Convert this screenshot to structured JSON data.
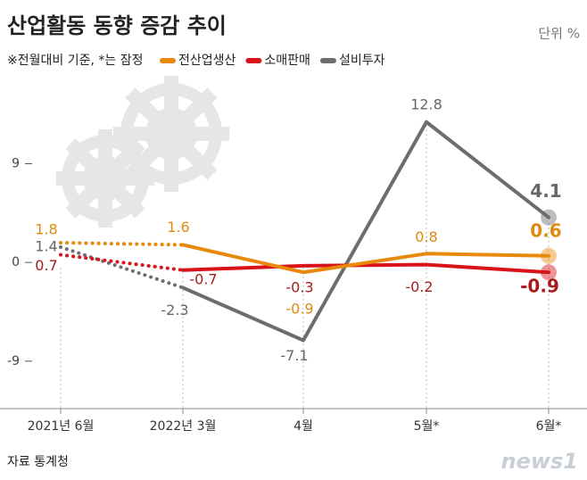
{
  "chart_data": {
    "type": "line",
    "title": "산업활동 동향 증감 추이",
    "unit": "단위 %",
    "note": "※전월대비 기준, *는 잠정",
    "source": "자료  통계청",
    "logo": "news1",
    "categories": [
      "2021년 6월",
      "2022년 3월",
      "4월",
      "5월*",
      "6월*"
    ],
    "series": [
      {
        "name": "전산업생산",
        "color": "#e8890c",
        "label_color": "#e08a10",
        "values": [
          1.8,
          1.6,
          -0.9,
          0.8,
          0.6
        ]
      },
      {
        "name": "소매판매",
        "color": "#d9131a",
        "label_color": "#a81c1c",
        "values": [
          0.7,
          -0.7,
          -0.3,
          -0.2,
          -0.9
        ]
      },
      {
        "name": "설비투자",
        "color": "#6d6d6d",
        "label_color": "#666666",
        "values": [
          1.4,
          -2.3,
          -7.1,
          12.8,
          4.1
        ]
      }
    ],
    "ylim": [
      -13,
      14
    ],
    "yticks": [
      9,
      0,
      -9
    ],
    "grid": false
  }
}
